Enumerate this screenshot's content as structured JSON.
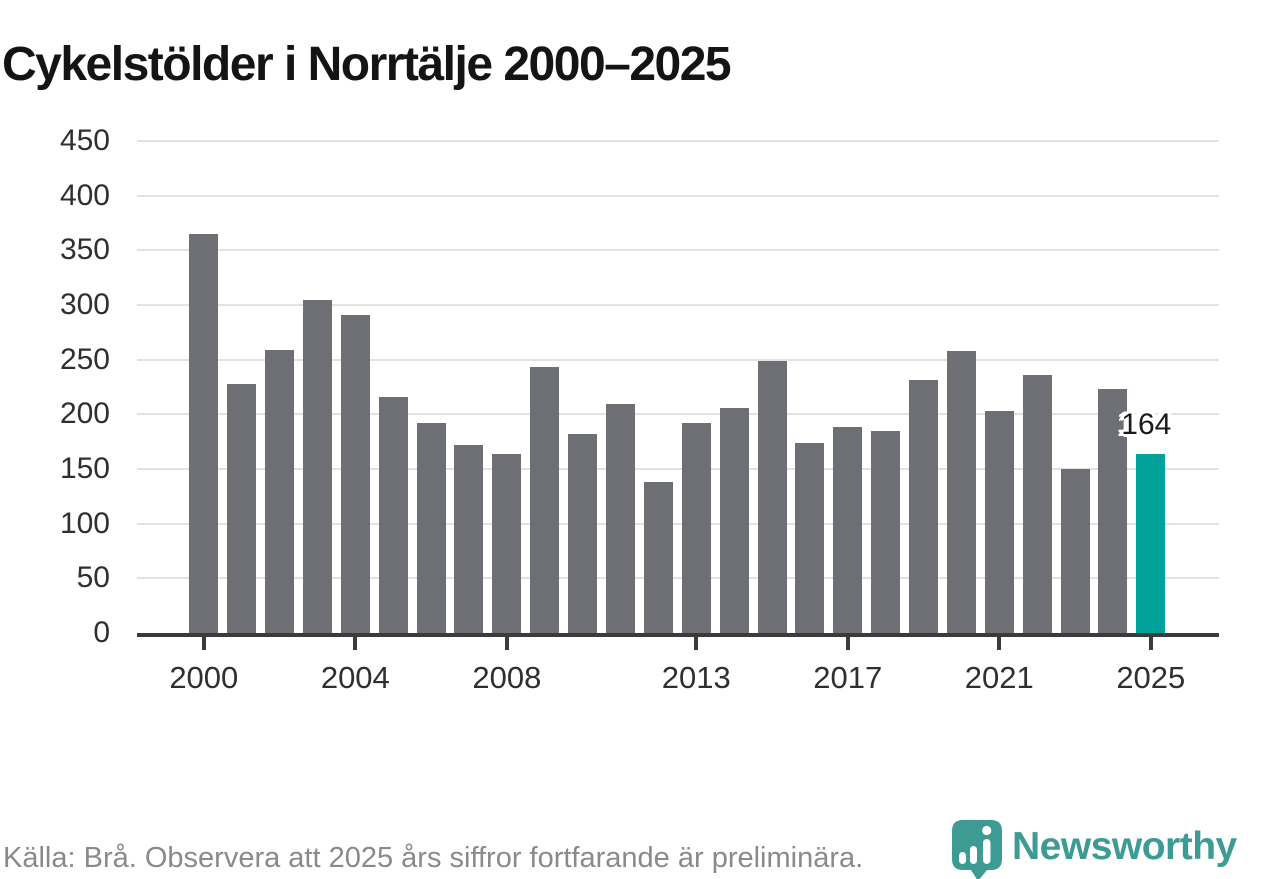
{
  "title": "Cykelstölder i Norrtälje 2000–2025",
  "source_note": "Källa: Brå. Observera att 2025 års siffror fortfarande är preliminära.",
  "brand": {
    "name": "Newsworthy",
    "logo_icon": "speech-bubble-bar-chart-icon"
  },
  "colors": {
    "bar": "#6E6E75",
    "highlight": "#00A29A",
    "grid": "#E2E2E2",
    "axis": "#3B3B3B",
    "tick_label": "#2F2F2F",
    "title": "#141414",
    "annotation": "#1A1A1A",
    "source": "#8A8A8E",
    "brand": "#3D9B93",
    "background": "#FFFFFF"
  },
  "chart_data": {
    "type": "bar",
    "title": "Cykelstölder i Norrtälje 2000–2025",
    "xlabel": "",
    "ylabel": "",
    "x": [
      2000,
      2001,
      2002,
      2003,
      2004,
      2005,
      2006,
      2007,
      2008,
      2009,
      2010,
      2011,
      2012,
      2013,
      2014,
      2015,
      2016,
      2017,
      2018,
      2019,
      2020,
      2021,
      2022,
      2023,
      2024,
      2025
    ],
    "values": [
      365,
      228,
      259,
      305,
      291,
      216,
      192,
      172,
      164,
      243,
      182,
      209,
      138,
      192,
      206,
      249,
      174,
      188,
      185,
      231,
      258,
      203,
      236,
      150,
      223,
      164
    ],
    "highlight_x": 2025,
    "annotations": [
      {
        "x": 2025,
        "text": "164"
      }
    ],
    "xticks": [
      2000,
      2004,
      2008,
      2013,
      2017,
      2021,
      2025
    ],
    "yticks": [
      0,
      50,
      100,
      150,
      200,
      250,
      300,
      350,
      400,
      450
    ],
    "ylim": [
      0,
      450
    ],
    "grid": "horizontal",
    "legend": "none"
  }
}
